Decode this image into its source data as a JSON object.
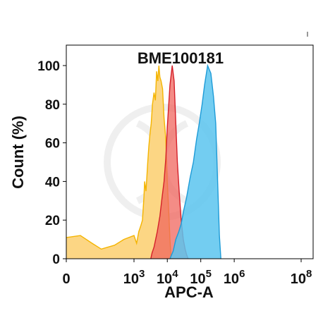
{
  "chart_data": {
    "type": "area",
    "title": "BME100181",
    "xlabel": "APC-A",
    "ylabel": "Count (%)",
    "y_ticks": [
      "0",
      "20",
      "40",
      "60",
      "80",
      "100"
    ],
    "x_ticks": [
      {
        "base": "0",
        "exp": ""
      },
      {
        "base": "10",
        "exp": "3"
      },
      {
        "base": "10",
        "exp": "4"
      },
      {
        "base": "10",
        "exp": "5"
      },
      {
        "base": "10",
        "exp": "6"
      },
      {
        "base": "10",
        "exp": "8"
      }
    ],
    "x_scale": "biexponential",
    "ylim": [
      0,
      100
    ],
    "grid": false,
    "series": [
      {
        "fill": "#fcd684",
        "stroke": "#f4b400",
        "x": [
          "0",
          "100",
          "200",
          "300",
          "500",
          "700",
          "1000",
          "1200",
          "1400",
          "1600",
          "1800",
          "2000",
          "2100",
          "2300",
          "2600",
          "2800",
          "3000",
          "3300",
          "3600",
          "4000",
          "4400",
          "4800",
          "5200",
          "5600",
          "6000",
          "6500",
          "7200",
          "8000",
          "9000",
          "10000",
          "11000",
          "12000",
          "13000"
        ],
        "y": [
          11,
          12,
          8,
          5,
          7,
          10,
          12,
          8,
          14,
          17,
          20,
          32,
          40,
          35,
          50,
          58,
          64,
          70,
          80,
          86,
          82,
          97,
          92,
          100,
          94,
          92,
          88,
          73,
          62,
          40,
          25,
          10,
          0
        ]
      },
      {
        "fill": "#f0655e",
        "stroke": "#d4202a",
        "opacity": 0.75,
        "x": [
          "3200",
          "3500",
          "4000",
          "5000",
          "6000",
          "7000",
          "8000",
          "9000",
          "10000",
          "12000",
          "14000",
          "16000",
          "18000",
          "20000",
          "23000",
          "26000",
          "30000",
          "34000",
          "38000",
          "42000"
        ],
        "y": [
          0,
          3,
          6,
          14,
          22,
          32,
          40,
          52,
          68,
          90,
          100,
          92,
          70,
          50,
          33,
          20,
          10,
          5,
          2,
          0
        ]
      },
      {
        "fill": "#5bc4ee",
        "stroke": "#1e9bd7",
        "opacity": 0.85,
        "x": [
          "12000",
          "15000",
          "18000",
          "22000",
          "26000",
          "30000",
          "38000",
          "48000",
          "60000",
          "75000",
          "90000",
          "110000",
          "130000",
          "160000",
          "200000",
          "240000",
          "280000",
          "320000",
          "360000",
          "400000"
        ],
        "y": [
          0,
          4,
          10,
          14,
          18,
          24,
          32,
          42,
          50,
          62,
          70,
          80,
          90,
          100,
          96,
          84,
          70,
          40,
          12,
          0
        ]
      }
    ]
  }
}
